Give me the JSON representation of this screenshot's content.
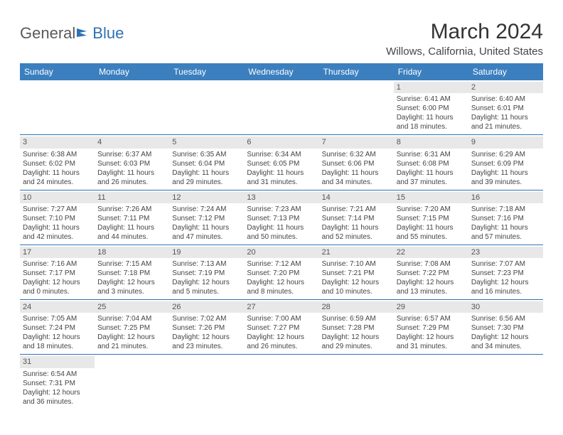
{
  "logo": {
    "part1": "General",
    "part2": "Blue"
  },
  "title": "March 2024",
  "location": "Willows, California, United States",
  "colors": {
    "header_bg": "#3b7fbf",
    "header_text": "#ffffff",
    "daynum_bg": "#e8e8e8",
    "border": "#2e72b5",
    "text": "#444444"
  },
  "weekdays": [
    "Sunday",
    "Monday",
    "Tuesday",
    "Wednesday",
    "Thursday",
    "Friday",
    "Saturday"
  ],
  "weeks": [
    [
      null,
      null,
      null,
      null,
      null,
      {
        "n": "1",
        "sr": "Sunrise: 6:41 AM",
        "ss": "Sunset: 6:00 PM",
        "dl1": "Daylight: 11 hours",
        "dl2": "and 18 minutes."
      },
      {
        "n": "2",
        "sr": "Sunrise: 6:40 AM",
        "ss": "Sunset: 6:01 PM",
        "dl1": "Daylight: 11 hours",
        "dl2": "and 21 minutes."
      }
    ],
    [
      {
        "n": "3",
        "sr": "Sunrise: 6:38 AM",
        "ss": "Sunset: 6:02 PM",
        "dl1": "Daylight: 11 hours",
        "dl2": "and 24 minutes."
      },
      {
        "n": "4",
        "sr": "Sunrise: 6:37 AM",
        "ss": "Sunset: 6:03 PM",
        "dl1": "Daylight: 11 hours",
        "dl2": "and 26 minutes."
      },
      {
        "n": "5",
        "sr": "Sunrise: 6:35 AM",
        "ss": "Sunset: 6:04 PM",
        "dl1": "Daylight: 11 hours",
        "dl2": "and 29 minutes."
      },
      {
        "n": "6",
        "sr": "Sunrise: 6:34 AM",
        "ss": "Sunset: 6:05 PM",
        "dl1": "Daylight: 11 hours",
        "dl2": "and 31 minutes."
      },
      {
        "n": "7",
        "sr": "Sunrise: 6:32 AM",
        "ss": "Sunset: 6:06 PM",
        "dl1": "Daylight: 11 hours",
        "dl2": "and 34 minutes."
      },
      {
        "n": "8",
        "sr": "Sunrise: 6:31 AM",
        "ss": "Sunset: 6:08 PM",
        "dl1": "Daylight: 11 hours",
        "dl2": "and 37 minutes."
      },
      {
        "n": "9",
        "sr": "Sunrise: 6:29 AM",
        "ss": "Sunset: 6:09 PM",
        "dl1": "Daylight: 11 hours",
        "dl2": "and 39 minutes."
      }
    ],
    [
      {
        "n": "10",
        "sr": "Sunrise: 7:27 AM",
        "ss": "Sunset: 7:10 PM",
        "dl1": "Daylight: 11 hours",
        "dl2": "and 42 minutes."
      },
      {
        "n": "11",
        "sr": "Sunrise: 7:26 AM",
        "ss": "Sunset: 7:11 PM",
        "dl1": "Daylight: 11 hours",
        "dl2": "and 44 minutes."
      },
      {
        "n": "12",
        "sr": "Sunrise: 7:24 AM",
        "ss": "Sunset: 7:12 PM",
        "dl1": "Daylight: 11 hours",
        "dl2": "and 47 minutes."
      },
      {
        "n": "13",
        "sr": "Sunrise: 7:23 AM",
        "ss": "Sunset: 7:13 PM",
        "dl1": "Daylight: 11 hours",
        "dl2": "and 50 minutes."
      },
      {
        "n": "14",
        "sr": "Sunrise: 7:21 AM",
        "ss": "Sunset: 7:14 PM",
        "dl1": "Daylight: 11 hours",
        "dl2": "and 52 minutes."
      },
      {
        "n": "15",
        "sr": "Sunrise: 7:20 AM",
        "ss": "Sunset: 7:15 PM",
        "dl1": "Daylight: 11 hours",
        "dl2": "and 55 minutes."
      },
      {
        "n": "16",
        "sr": "Sunrise: 7:18 AM",
        "ss": "Sunset: 7:16 PM",
        "dl1": "Daylight: 11 hours",
        "dl2": "and 57 minutes."
      }
    ],
    [
      {
        "n": "17",
        "sr": "Sunrise: 7:16 AM",
        "ss": "Sunset: 7:17 PM",
        "dl1": "Daylight: 12 hours",
        "dl2": "and 0 minutes."
      },
      {
        "n": "18",
        "sr": "Sunrise: 7:15 AM",
        "ss": "Sunset: 7:18 PM",
        "dl1": "Daylight: 12 hours",
        "dl2": "and 3 minutes."
      },
      {
        "n": "19",
        "sr": "Sunrise: 7:13 AM",
        "ss": "Sunset: 7:19 PM",
        "dl1": "Daylight: 12 hours",
        "dl2": "and 5 minutes."
      },
      {
        "n": "20",
        "sr": "Sunrise: 7:12 AM",
        "ss": "Sunset: 7:20 PM",
        "dl1": "Daylight: 12 hours",
        "dl2": "and 8 minutes."
      },
      {
        "n": "21",
        "sr": "Sunrise: 7:10 AM",
        "ss": "Sunset: 7:21 PM",
        "dl1": "Daylight: 12 hours",
        "dl2": "and 10 minutes."
      },
      {
        "n": "22",
        "sr": "Sunrise: 7:08 AM",
        "ss": "Sunset: 7:22 PM",
        "dl1": "Daylight: 12 hours",
        "dl2": "and 13 minutes."
      },
      {
        "n": "23",
        "sr": "Sunrise: 7:07 AM",
        "ss": "Sunset: 7:23 PM",
        "dl1": "Daylight: 12 hours",
        "dl2": "and 16 minutes."
      }
    ],
    [
      {
        "n": "24",
        "sr": "Sunrise: 7:05 AM",
        "ss": "Sunset: 7:24 PM",
        "dl1": "Daylight: 12 hours",
        "dl2": "and 18 minutes."
      },
      {
        "n": "25",
        "sr": "Sunrise: 7:04 AM",
        "ss": "Sunset: 7:25 PM",
        "dl1": "Daylight: 12 hours",
        "dl2": "and 21 minutes."
      },
      {
        "n": "26",
        "sr": "Sunrise: 7:02 AM",
        "ss": "Sunset: 7:26 PM",
        "dl1": "Daylight: 12 hours",
        "dl2": "and 23 minutes."
      },
      {
        "n": "27",
        "sr": "Sunrise: 7:00 AM",
        "ss": "Sunset: 7:27 PM",
        "dl1": "Daylight: 12 hours",
        "dl2": "and 26 minutes."
      },
      {
        "n": "28",
        "sr": "Sunrise: 6:59 AM",
        "ss": "Sunset: 7:28 PM",
        "dl1": "Daylight: 12 hours",
        "dl2": "and 29 minutes."
      },
      {
        "n": "29",
        "sr": "Sunrise: 6:57 AM",
        "ss": "Sunset: 7:29 PM",
        "dl1": "Daylight: 12 hours",
        "dl2": "and 31 minutes."
      },
      {
        "n": "30",
        "sr": "Sunrise: 6:56 AM",
        "ss": "Sunset: 7:30 PM",
        "dl1": "Daylight: 12 hours",
        "dl2": "and 34 minutes."
      }
    ],
    [
      {
        "n": "31",
        "sr": "Sunrise: 6:54 AM",
        "ss": "Sunset: 7:31 PM",
        "dl1": "Daylight: 12 hours",
        "dl2": "and 36 minutes."
      },
      null,
      null,
      null,
      null,
      null,
      null
    ]
  ]
}
